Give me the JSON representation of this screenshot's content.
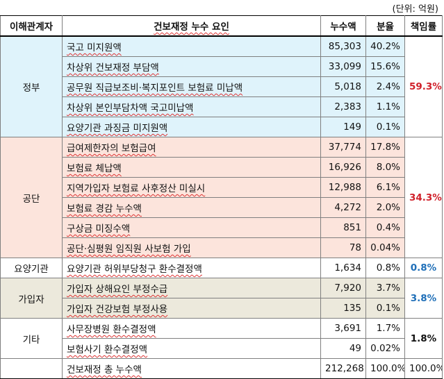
{
  "unit": "(단위: 억원)",
  "headers": {
    "party": "이해관계자",
    "factor": "건보재정 누수 요인",
    "amount": "누수액",
    "share": "분율",
    "responsibility": "책임률"
  },
  "groups": {
    "gov": {
      "name": "정부",
      "responsibility": "59.3%",
      "rows": [
        {
          "factor": "국고 미지원액",
          "amount": "85,303",
          "share": "40.2%"
        },
        {
          "factor": "차상위 건보재정 부담액",
          "amount": "33,099",
          "share": "15.6%"
        },
        {
          "factor": "공무원 직급보조비·복지포인트 보험료 미납액",
          "amount": "5,018",
          "share": "2.4%"
        },
        {
          "factor": "차상위 본인부담차액 국고미납액",
          "amount": "2,383",
          "share": "1.1%"
        },
        {
          "factor": "요양기관 과징금 미지원액",
          "amount": "149",
          "share": "0.1%"
        }
      ]
    },
    "nhis": {
      "name": "공단",
      "responsibility": "34.3%",
      "rows": [
        {
          "factor": "급여제한자의 보험급여",
          "amount": "37,774",
          "share": "17.8%"
        },
        {
          "factor": "보험료 체납액",
          "amount": "16,926",
          "share": "8.0%"
        },
        {
          "factor": "지역가입자 보험료 사후정산 미실시",
          "amount": "12,988",
          "share": "6.1%"
        },
        {
          "factor": "보험료 경감 누수액",
          "amount": "4,272",
          "share": "2.0%"
        },
        {
          "factor": "구상금 미징수액",
          "amount": "851",
          "share": "0.4%"
        },
        {
          "factor": "공단·심평원 임직원 사보험 가입",
          "amount": "78",
          "share": "0.04%"
        }
      ]
    },
    "provider": {
      "name": "요양기관",
      "responsibility": "0.8%",
      "rows": [
        {
          "factor": "요양기관 허위부당청구 환수결정액",
          "amount": "1,634",
          "share": "0.8%"
        }
      ]
    },
    "subscriber": {
      "name": "가입자",
      "responsibility": "3.8%",
      "rows": [
        {
          "factor": "가입자 상해요인 부정수급",
          "amount": "7,920",
          "share": "3.7%"
        },
        {
          "factor": "가입자 건강보험 부정사용",
          "amount": "135",
          "share": "0.1%"
        }
      ]
    },
    "other": {
      "name": "기타",
      "responsibility": "1.8%",
      "rows": [
        {
          "factor": "사무장병원 환수결정액",
          "amount": "3,691",
          "share": "1.7%"
        },
        {
          "factor": "보험사기 환수결정액",
          "amount": "49",
          "share": "0.02%"
        }
      ]
    }
  },
  "total": {
    "factor": "건보재정 총 누수액",
    "amount": "212,268",
    "share": "100.0%",
    "responsibility": "100.0%"
  },
  "colors": {
    "gov_bg": "#dff3fb",
    "nhis_bg": "#fce4dc",
    "subscriber_bg": "#ece9dc",
    "red": "#d0202a",
    "blue": "#1f6fb8"
  }
}
